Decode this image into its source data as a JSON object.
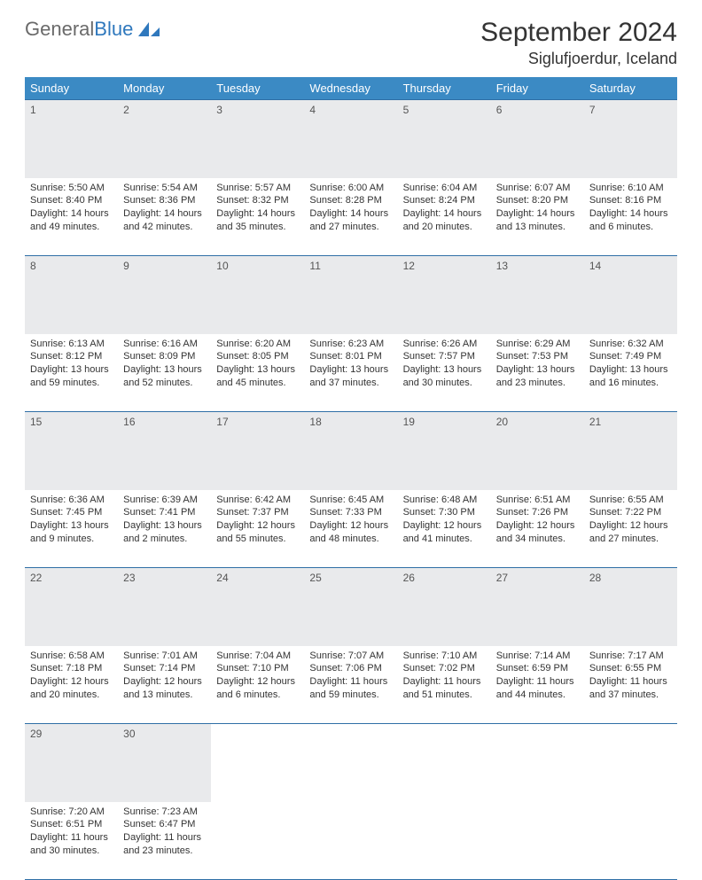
{
  "logo": {
    "text_gray": "General",
    "text_blue": "Blue"
  },
  "title": "September 2024",
  "location": "Siglufjoerdur, Iceland",
  "colors": {
    "header_bg": "#3b8ac4",
    "header_text": "#ffffff",
    "daynum_bg": "#e9eaec",
    "rule": "#2f6fa6",
    "body_text": "#333333",
    "logo_gray": "#6a6a6a",
    "logo_blue": "#2f78bd",
    "page_bg": "#ffffff"
  },
  "typography": {
    "month_title_size_pt": 23,
    "location_size_pt": 14,
    "weekday_header_size_pt": 10,
    "cell_text_size_pt": 8
  },
  "calendar": {
    "type": "table",
    "columns": [
      "Sunday",
      "Monday",
      "Tuesday",
      "Wednesday",
      "Thursday",
      "Friday",
      "Saturday"
    ],
    "weeks": [
      [
        {
          "day": "1",
          "sunrise": "Sunrise: 5:50 AM",
          "sunset": "Sunset: 8:40 PM",
          "daylight": "Daylight: 14 hours and 49 minutes."
        },
        {
          "day": "2",
          "sunrise": "Sunrise: 5:54 AM",
          "sunset": "Sunset: 8:36 PM",
          "daylight": "Daylight: 14 hours and 42 minutes."
        },
        {
          "day": "3",
          "sunrise": "Sunrise: 5:57 AM",
          "sunset": "Sunset: 8:32 PM",
          "daylight": "Daylight: 14 hours and 35 minutes."
        },
        {
          "day": "4",
          "sunrise": "Sunrise: 6:00 AM",
          "sunset": "Sunset: 8:28 PM",
          "daylight": "Daylight: 14 hours and 27 minutes."
        },
        {
          "day": "5",
          "sunrise": "Sunrise: 6:04 AM",
          "sunset": "Sunset: 8:24 PM",
          "daylight": "Daylight: 14 hours and 20 minutes."
        },
        {
          "day": "6",
          "sunrise": "Sunrise: 6:07 AM",
          "sunset": "Sunset: 8:20 PM",
          "daylight": "Daylight: 14 hours and 13 minutes."
        },
        {
          "day": "7",
          "sunrise": "Sunrise: 6:10 AM",
          "sunset": "Sunset: 8:16 PM",
          "daylight": "Daylight: 14 hours and 6 minutes."
        }
      ],
      [
        {
          "day": "8",
          "sunrise": "Sunrise: 6:13 AM",
          "sunset": "Sunset: 8:12 PM",
          "daylight": "Daylight: 13 hours and 59 minutes."
        },
        {
          "day": "9",
          "sunrise": "Sunrise: 6:16 AM",
          "sunset": "Sunset: 8:09 PM",
          "daylight": "Daylight: 13 hours and 52 minutes."
        },
        {
          "day": "10",
          "sunrise": "Sunrise: 6:20 AM",
          "sunset": "Sunset: 8:05 PM",
          "daylight": "Daylight: 13 hours and 45 minutes."
        },
        {
          "day": "11",
          "sunrise": "Sunrise: 6:23 AM",
          "sunset": "Sunset: 8:01 PM",
          "daylight": "Daylight: 13 hours and 37 minutes."
        },
        {
          "day": "12",
          "sunrise": "Sunrise: 6:26 AM",
          "sunset": "Sunset: 7:57 PM",
          "daylight": "Daylight: 13 hours and 30 minutes."
        },
        {
          "day": "13",
          "sunrise": "Sunrise: 6:29 AM",
          "sunset": "Sunset: 7:53 PM",
          "daylight": "Daylight: 13 hours and 23 minutes."
        },
        {
          "day": "14",
          "sunrise": "Sunrise: 6:32 AM",
          "sunset": "Sunset: 7:49 PM",
          "daylight": "Daylight: 13 hours and 16 minutes."
        }
      ],
      [
        {
          "day": "15",
          "sunrise": "Sunrise: 6:36 AM",
          "sunset": "Sunset: 7:45 PM",
          "daylight": "Daylight: 13 hours and 9 minutes."
        },
        {
          "day": "16",
          "sunrise": "Sunrise: 6:39 AM",
          "sunset": "Sunset: 7:41 PM",
          "daylight": "Daylight: 13 hours and 2 minutes."
        },
        {
          "day": "17",
          "sunrise": "Sunrise: 6:42 AM",
          "sunset": "Sunset: 7:37 PM",
          "daylight": "Daylight: 12 hours and 55 minutes."
        },
        {
          "day": "18",
          "sunrise": "Sunrise: 6:45 AM",
          "sunset": "Sunset: 7:33 PM",
          "daylight": "Daylight: 12 hours and 48 minutes."
        },
        {
          "day": "19",
          "sunrise": "Sunrise: 6:48 AM",
          "sunset": "Sunset: 7:30 PM",
          "daylight": "Daylight: 12 hours and 41 minutes."
        },
        {
          "day": "20",
          "sunrise": "Sunrise: 6:51 AM",
          "sunset": "Sunset: 7:26 PM",
          "daylight": "Daylight: 12 hours and 34 minutes."
        },
        {
          "day": "21",
          "sunrise": "Sunrise: 6:55 AM",
          "sunset": "Sunset: 7:22 PM",
          "daylight": "Daylight: 12 hours and 27 minutes."
        }
      ],
      [
        {
          "day": "22",
          "sunrise": "Sunrise: 6:58 AM",
          "sunset": "Sunset: 7:18 PM",
          "daylight": "Daylight: 12 hours and 20 minutes."
        },
        {
          "day": "23",
          "sunrise": "Sunrise: 7:01 AM",
          "sunset": "Sunset: 7:14 PM",
          "daylight": "Daylight: 12 hours and 13 minutes."
        },
        {
          "day": "24",
          "sunrise": "Sunrise: 7:04 AM",
          "sunset": "Sunset: 7:10 PM",
          "daylight": "Daylight: 12 hours and 6 minutes."
        },
        {
          "day": "25",
          "sunrise": "Sunrise: 7:07 AM",
          "sunset": "Sunset: 7:06 PM",
          "daylight": "Daylight: 11 hours and 59 minutes."
        },
        {
          "day": "26",
          "sunrise": "Sunrise: 7:10 AM",
          "sunset": "Sunset: 7:02 PM",
          "daylight": "Daylight: 11 hours and 51 minutes."
        },
        {
          "day": "27",
          "sunrise": "Sunrise: 7:14 AM",
          "sunset": "Sunset: 6:59 PM",
          "daylight": "Daylight: 11 hours and 44 minutes."
        },
        {
          "day": "28",
          "sunrise": "Sunrise: 7:17 AM",
          "sunset": "Sunset: 6:55 PM",
          "daylight": "Daylight: 11 hours and 37 minutes."
        }
      ],
      [
        {
          "day": "29",
          "sunrise": "Sunrise: 7:20 AM",
          "sunset": "Sunset: 6:51 PM",
          "daylight": "Daylight: 11 hours and 30 minutes."
        },
        {
          "day": "30",
          "sunrise": "Sunrise: 7:23 AM",
          "sunset": "Sunset: 6:47 PM",
          "daylight": "Daylight: 11 hours and 23 minutes."
        },
        null,
        null,
        null,
        null,
        null
      ]
    ]
  }
}
